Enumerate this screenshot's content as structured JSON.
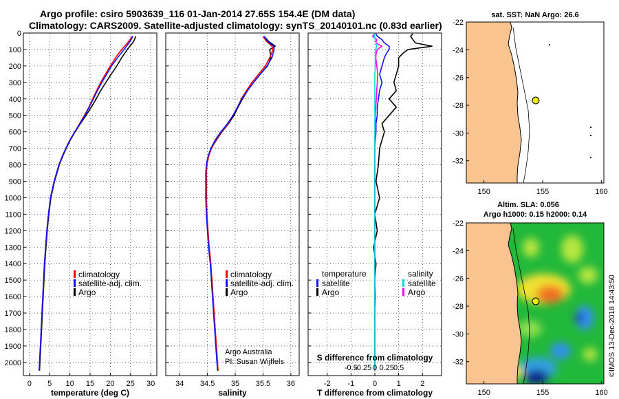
{
  "title_line1": "Argo profile: csiro 5903639_116 01-Jan-2014 27.65S 154.4E (DM data)",
  "title_line2": "Climatology: CARS2009. Satellite-adjusted climatology: synTS_20140101.nc (0.83d earlier)",
  "credit_line1": "Argo Australia",
  "credit_line2": "PI: Susan Wijffels",
  "imos_stamp": "©IMOS 13-Dec-2018 14:43:50",
  "colors": {
    "climatology": "#ff0000",
    "satellite": "#1010ff",
    "argo": "#000000",
    "sal_sat": "#00dddd",
    "sal_argo": "#ff00ff",
    "land": "#f9c48f",
    "point": "#e8e800"
  },
  "chart_data": [
    {
      "id": "temperature",
      "type": "line",
      "xlabel": "temperature (deg C)",
      "xlim": [
        -1.5,
        31.5
      ],
      "ylim": [
        0,
        2080
      ],
      "y_inverted": true,
      "xticks": [
        0,
        5,
        10,
        15,
        20,
        25,
        30
      ],
      "yticks": [
        0,
        100,
        200,
        300,
        400,
        500,
        600,
        700,
        800,
        900,
        1000,
        1100,
        1200,
        1300,
        1400,
        1500,
        1600,
        1700,
        1800,
        1900,
        2000
      ],
      "legend": [
        "climatology",
        "satellite-adj. clim.",
        "Argo"
      ],
      "depth": [
        20,
        50,
        100,
        150,
        200,
        250,
        300,
        350,
        400,
        450,
        500,
        550,
        600,
        650,
        700,
        750,
        800,
        900,
        1000,
        1100,
        1200,
        1300,
        1400,
        1500,
        1600,
        1700,
        1800,
        1900,
        2000,
        2050
      ],
      "series": [
        {
          "name": "Argo",
          "color": "#000000",
          "values": [
            26.3,
            25.8,
            24.2,
            22.8,
            21.6,
            20.2,
            18.9,
            17.6,
            16.5,
            15.3,
            14.0,
            12.6,
            11.3,
            10.1,
            9.1,
            8.2,
            7.4,
            6.2,
            5.3,
            4.8,
            4.4,
            4.1,
            3.8,
            3.6,
            3.4,
            3.2,
            3.0,
            2.8,
            2.6,
            2.5
          ]
        },
        {
          "name": "climatology",
          "color": "#ff0000",
          "values": [
            25.4,
            24.6,
            22.8,
            21.3,
            20.0,
            18.8,
            17.6,
            16.6,
            15.6,
            14.7,
            13.6,
            12.4,
            11.2,
            10.0,
            9.0,
            8.1,
            7.3,
            6.1,
            5.2,
            4.7,
            4.3,
            4.0,
            3.7,
            3.5,
            3.3,
            3.1,
            2.9,
            2.7,
            2.5,
            2.4
          ]
        },
        {
          "name": "satellite-adj. clim.",
          "color": "#1010ff",
          "values": [
            25.6,
            24.9,
            23.4,
            21.8,
            20.3,
            19.1,
            17.9,
            16.8,
            15.8,
            14.8,
            13.7,
            12.5,
            11.2,
            10.0,
            9.0,
            8.1,
            7.3,
            6.1,
            5.2,
            4.7,
            4.3,
            4.0,
            3.7,
            3.5,
            3.3,
            3.1,
            2.9,
            2.7,
            2.5,
            2.4
          ]
        }
      ]
    },
    {
      "id": "salinity",
      "type": "line",
      "xlabel": "salinity",
      "xlim": [
        33.75,
        36.15
      ],
      "ylim": [
        0,
        2080
      ],
      "y_inverted": true,
      "xticks": [
        34,
        34.5,
        35,
        35.5,
        36
      ],
      "xticklabels": [
        "34",
        "34.5",
        "35",
        "35.5",
        "36"
      ],
      "legend": [
        "climatology",
        "satellite-adj. clim.",
        "Argo"
      ],
      "depth": [
        20,
        50,
        80,
        100,
        150,
        200,
        250,
        300,
        350,
        400,
        450,
        500,
        550,
        600,
        650,
        700,
        750,
        800,
        850,
        900,
        1000,
        1100,
        1200,
        1300,
        1400,
        1500,
        1600,
        1700,
        1800,
        1900,
        2000,
        2050
      ],
      "series": [
        {
          "name": "Argo",
          "color": "#000000",
          "values": [
            35.52,
            35.6,
            35.72,
            35.62,
            35.64,
            35.58,
            35.45,
            35.33,
            35.22,
            35.13,
            35.05,
            34.98,
            34.88,
            34.76,
            34.66,
            34.57,
            34.52,
            34.49,
            34.48,
            34.48,
            34.48,
            34.49,
            34.51,
            34.53,
            34.56,
            34.58,
            34.6,
            34.62,
            34.64,
            34.66,
            34.68,
            34.69
          ]
        },
        {
          "name": "climatology",
          "color": "#ff0000",
          "values": [
            35.5,
            35.56,
            35.66,
            35.68,
            35.62,
            35.54,
            35.42,
            35.3,
            35.2,
            35.11,
            35.04,
            34.96,
            34.87,
            34.75,
            34.65,
            34.57,
            34.52,
            34.49,
            34.48,
            34.48,
            34.48,
            34.49,
            34.51,
            34.53,
            34.56,
            34.58,
            34.6,
            34.62,
            34.64,
            34.66,
            34.68,
            34.69
          ]
        },
        {
          "name": "satellite-adj. clim.",
          "color": "#1010ff",
          "values": [
            35.52,
            35.58,
            35.69,
            35.7,
            35.66,
            35.57,
            35.45,
            35.33,
            35.22,
            35.12,
            35.04,
            34.96,
            34.86,
            34.74,
            34.64,
            34.56,
            34.51,
            34.48,
            34.47,
            34.47,
            34.47,
            34.48,
            34.5,
            34.52,
            34.55,
            34.57,
            34.59,
            34.61,
            34.63,
            34.65,
            34.67,
            34.68
          ]
        }
      ]
    },
    {
      "id": "difference",
      "type": "line",
      "xlabel": "T difference from climatology",
      "xlabel_top": "S difference from climatology",
      "xlim": [
        -2.8,
        2.8
      ],
      "ylim": [
        0,
        2080
      ],
      "y_inverted": true,
      "xticks": [
        -2,
        -1,
        0,
        1,
        2
      ],
      "s_ticks": [
        -0.5,
        -0.25,
        0,
        0.25,
        0.5
      ],
      "s_ticklabels": [
        "-0.5",
        "-0.25",
        "0",
        "0.25",
        "0.5"
      ],
      "legend_left_title": "temperature",
      "legend_right_title": "salinity",
      "legend_left": [
        "satellite",
        "Argo"
      ],
      "legend_right": [
        "satellite",
        "Argo"
      ],
      "depth": [
        5,
        20,
        40,
        60,
        80,
        100,
        120,
        150,
        200,
        250,
        300,
        350,
        400,
        450,
        500,
        550,
        600,
        650,
        700,
        800,
        900,
        1000,
        1100,
        1200,
        1300,
        1400,
        1500,
        1600,
        1700,
        1800,
        1900,
        2000,
        2050
      ],
      "series": [
        {
          "name": "T Argo diff",
          "color": "#000000",
          "values": [
            1.6,
            1.5,
            1.6,
            1.7,
            2.4,
            1.4,
            1.2,
            1.0,
            1.0,
            0.9,
            0.8,
            0.9,
            0.6,
            0.9,
            0.6,
            0.3,
            0.4,
            0.3,
            0.2,
            0.15,
            0.05,
            0.2,
            0.0,
            0.1,
            -0.05,
            0.05,
            0.0,
            0.02,
            0.0,
            0.0,
            0.0,
            0.0,
            0.0
          ]
        },
        {
          "name": "T satellite diff",
          "color": "#1010ff",
          "values": [
            0.05,
            0.1,
            0.3,
            0.4,
            0.6,
            0.6,
            0.5,
            0.4,
            0.3,
            0.2,
            0.3,
            0.2,
            0.15,
            0.1,
            0.1,
            0.05,
            0.05,
            0.02,
            0.0,
            0.0,
            0.0,
            0.0,
            0.0,
            0.0,
            0.0,
            0.0,
            0.0,
            0.0,
            0.0,
            0.0,
            0.0,
            0.0,
            0.0
          ]
        },
        {
          "name": "S Argo diff",
          "color": "#ff00ff",
          "values": [
            0.0,
            -0.05,
            0.04,
            0.02,
            0.15,
            0.05,
            0.03,
            0.02,
            0.04,
            0.06,
            0.05,
            0.04,
            0.03,
            0.02,
            0.01,
            0.01,
            0.01,
            0.0,
            0.0,
            0.0,
            0.0,
            0.0,
            0.0,
            0.0,
            0.0,
            0.0,
            0.0,
            0.0,
            0.0,
            0.0,
            0.0,
            0.0,
            0.0
          ]
        },
        {
          "name": "S satellite diff",
          "color": "#00dddd",
          "values": [
            0.0,
            -0.01,
            0.01,
            0.02,
            0.04,
            0.02,
            0.01,
            0.01,
            0.01,
            0.0,
            0.0,
            0.0,
            0.0,
            0.0,
            0.0,
            0.0,
            0.0,
            0.0,
            0.0,
            0.0,
            0.0,
            0.0,
            0.0,
            0.0,
            0.0,
            0.0,
            0.0,
            0.0,
            0.0,
            0.0,
            0.0,
            0.0,
            0.0
          ]
        }
      ]
    },
    {
      "id": "sst_map",
      "type": "map",
      "title": "sat. SST: NaN Argo: 26.6",
      "xlim": [
        148.5,
        160.2
      ],
      "ylim": [
        -33.6,
        -22
      ],
      "xticks": [
        150,
        155,
        160
      ],
      "yticks": [
        -22,
        -24,
        -26,
        -28,
        -30,
        -32
      ],
      "float_position": {
        "lon": 154.4,
        "lat": -27.65
      }
    },
    {
      "id": "sla_map",
      "type": "map",
      "title_line1": "Altim. SLA: 0.056",
      "title_line2": "Argo h1000: 0.15 h2000: 0.14",
      "xlim": [
        148.5,
        160.2
      ],
      "ylim": [
        -33.6,
        -22
      ],
      "xticks": [
        150,
        155,
        160
      ],
      "yticks": [
        -22,
        -24,
        -26,
        -28,
        -30,
        -32
      ],
      "float_position": {
        "lon": 154.4,
        "lat": -27.65
      }
    }
  ]
}
